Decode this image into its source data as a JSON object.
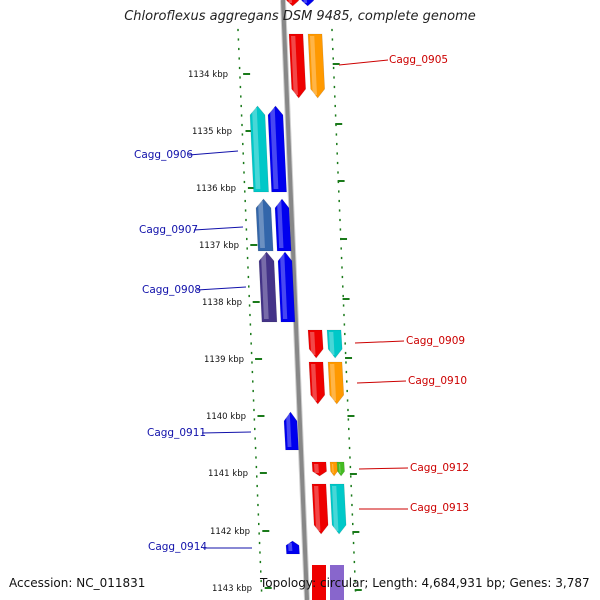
{
  "title": "Chloroflexus aggregans DSM 9485, complete genome",
  "footer": {
    "accession": "Accession: NC_011831",
    "topology": "Topology: circular; Length: 4,684,931 bp; Genes: 3,787"
  },
  "colors": {
    "backbone": "#888888",
    "tick": "#1a7a1a",
    "forward_label": "#cc0000",
    "reverse_label": "#1111aa",
    "red": "#ee0000",
    "orange": "#ff9900",
    "blue": "#0000ee",
    "cyan": "#00c8c8",
    "steel": "#3366aa",
    "slate": "#443388",
    "green": "#44bb22"
  },
  "axis": {
    "unit": "kbp",
    "ticks": [
      "1134 kbp",
      "1135 kbp",
      "1136 kbp",
      "1137 kbp",
      "1138 kbp",
      "1139 kbp",
      "1140 kbp",
      "1141 kbp",
      "1142 kbp",
      "1143 kbp"
    ]
  },
  "genes": [
    {
      "label": "Cagg_0905",
      "strand": "forward",
      "colors": [
        "red",
        "orange"
      ]
    },
    {
      "label": "Cagg_0906",
      "strand": "reverse",
      "colors": [
        "cyan",
        "blue"
      ]
    },
    {
      "label": "Cagg_0907",
      "strand": "reverse",
      "colors": [
        "steel",
        "blue"
      ]
    },
    {
      "label": "Cagg_0908",
      "strand": "reverse",
      "colors": [
        "slate",
        "blue"
      ]
    },
    {
      "label": "Cagg_0909",
      "strand": "forward",
      "colors": [
        "red",
        "cyan"
      ]
    },
    {
      "label": "Cagg_0910",
      "strand": "forward",
      "colors": [
        "red",
        "orange"
      ]
    },
    {
      "label": "Cagg_0911",
      "strand": "reverse",
      "colors": [
        "blue"
      ]
    },
    {
      "label": "Cagg_0912",
      "strand": "forward",
      "colors": [
        "red",
        "orange",
        "green"
      ]
    },
    {
      "label": "Cagg_0913",
      "strand": "forward",
      "colors": [
        "red",
        "cyan"
      ]
    },
    {
      "label": "Cagg_0914",
      "strand": "reverse",
      "colors": [
        "blue"
      ]
    }
  ]
}
